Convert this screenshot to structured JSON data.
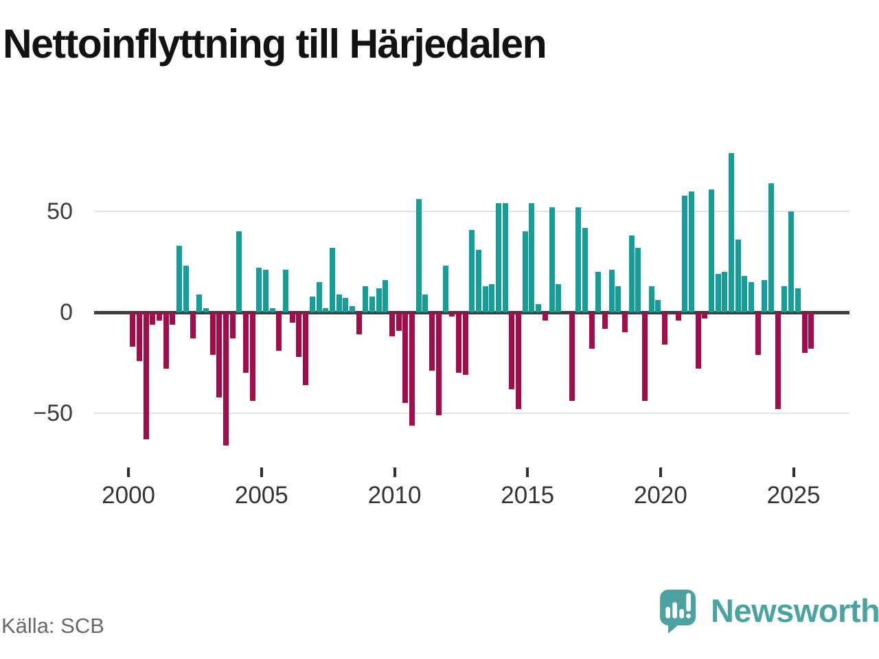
{
  "title": "Nettoinflyttning till Härjedalen",
  "source": {
    "text": "Källa: SCB"
  },
  "brand": {
    "name": "Newsworthy",
    "icon": "speech-bubble-bar-chart-icon"
  },
  "colors": {
    "positive_bar": "#149e97",
    "negative_bar": "#a30d49",
    "zero_axis": "#3a3f42",
    "gridline": "#e2e2e2",
    "axis_text": "#3b3b3b",
    "title_text": "#121212",
    "source_text": "#686868",
    "brand_teal": "#4ca2a0"
  },
  "chart_data": {
    "type": "bar",
    "title": "Nettoinflyttning till Härjedalen",
    "xlabel": "",
    "ylabel": "",
    "frequency": "quarterly",
    "ylim": [
      -70,
      85
    ],
    "grid": "horizontal gridlines at 50 and -50, dark zero axis line",
    "legend": "none",
    "y_ticks": [
      50,
      0,
      -50
    ],
    "y_tick_labels": [
      "50",
      "0",
      "−50"
    ],
    "x_tick_labels": [
      "2000",
      "2005",
      "2010",
      "2015",
      "2020",
      "2025"
    ],
    "x": [
      "2000Q1",
      "2000Q2",
      "2000Q3",
      "2000Q4",
      "2001Q1",
      "2001Q2",
      "2001Q3",
      "2001Q4",
      "2002Q1",
      "2002Q2",
      "2002Q3",
      "2002Q4",
      "2003Q1",
      "2003Q2",
      "2003Q3",
      "2003Q4",
      "2004Q1",
      "2004Q2",
      "2004Q3",
      "2004Q4",
      "2005Q1",
      "2005Q2",
      "2005Q3",
      "2005Q4",
      "2006Q1",
      "2006Q2",
      "2006Q3",
      "2006Q4",
      "2007Q1",
      "2007Q2",
      "2007Q3",
      "2007Q4",
      "2008Q1",
      "2008Q2",
      "2008Q3",
      "2008Q4",
      "2009Q1",
      "2009Q2",
      "2009Q3",
      "2009Q4",
      "2010Q1",
      "2010Q2",
      "2010Q3",
      "2010Q4",
      "2011Q1",
      "2011Q2",
      "2011Q3",
      "2011Q4",
      "2012Q1",
      "2012Q2",
      "2012Q3",
      "2012Q4",
      "2013Q1",
      "2013Q2",
      "2013Q3",
      "2013Q4",
      "2014Q1",
      "2014Q2",
      "2014Q3",
      "2014Q4",
      "2015Q1",
      "2015Q2",
      "2015Q3",
      "2015Q4",
      "2016Q1",
      "2016Q2",
      "2016Q3",
      "2016Q4",
      "2017Q1",
      "2017Q2",
      "2017Q3",
      "2017Q4",
      "2018Q1",
      "2018Q2",
      "2018Q3",
      "2018Q4",
      "2019Q1",
      "2019Q2",
      "2019Q3",
      "2019Q4",
      "2020Q1",
      "2020Q2",
      "2020Q3",
      "2020Q4",
      "2021Q1",
      "2021Q2",
      "2021Q3",
      "2021Q4",
      "2022Q1",
      "2022Q2",
      "2022Q3",
      "2022Q4",
      "2023Q1",
      "2023Q2",
      "2023Q3",
      "2023Q4",
      "2024Q1",
      "2024Q2",
      "2024Q3",
      "2024Q4",
      "2025Q1",
      "2025Q2",
      "2025Q3"
    ],
    "values": [
      -17,
      -24,
      -63,
      -6,
      -4,
      -28,
      -6,
      33,
      23,
      -13,
      9,
      2,
      -21,
      -42,
      -66,
      -13,
      40,
      -30,
      -44,
      22,
      21,
      2,
      -19,
      21,
      -5,
      -22,
      -36,
      8,
      15,
      2,
      32,
      9,
      7,
      3,
      -11,
      13,
      8,
      12,
      16,
      -12,
      -9,
      -45,
      -56,
      56,
      9,
      -29,
      -51,
      23,
      -2,
      -30,
      -31,
      41,
      31,
      13,
      14,
      54,
      54,
      -38,
      -48,
      40,
      54,
      4,
      -4,
      52,
      14,
      0,
      -44,
      52,
      42,
      -18,
      20,
      -8,
      21,
      13,
      -10,
      38,
      32,
      -44,
      13,
      6,
      -16,
      0,
      -4,
      58,
      60,
      -28,
      -3,
      61,
      19,
      20,
      79,
      36,
      18,
      15,
      -21,
      16,
      64,
      -48,
      13,
      50,
      12,
      -20,
      -18
    ]
  }
}
